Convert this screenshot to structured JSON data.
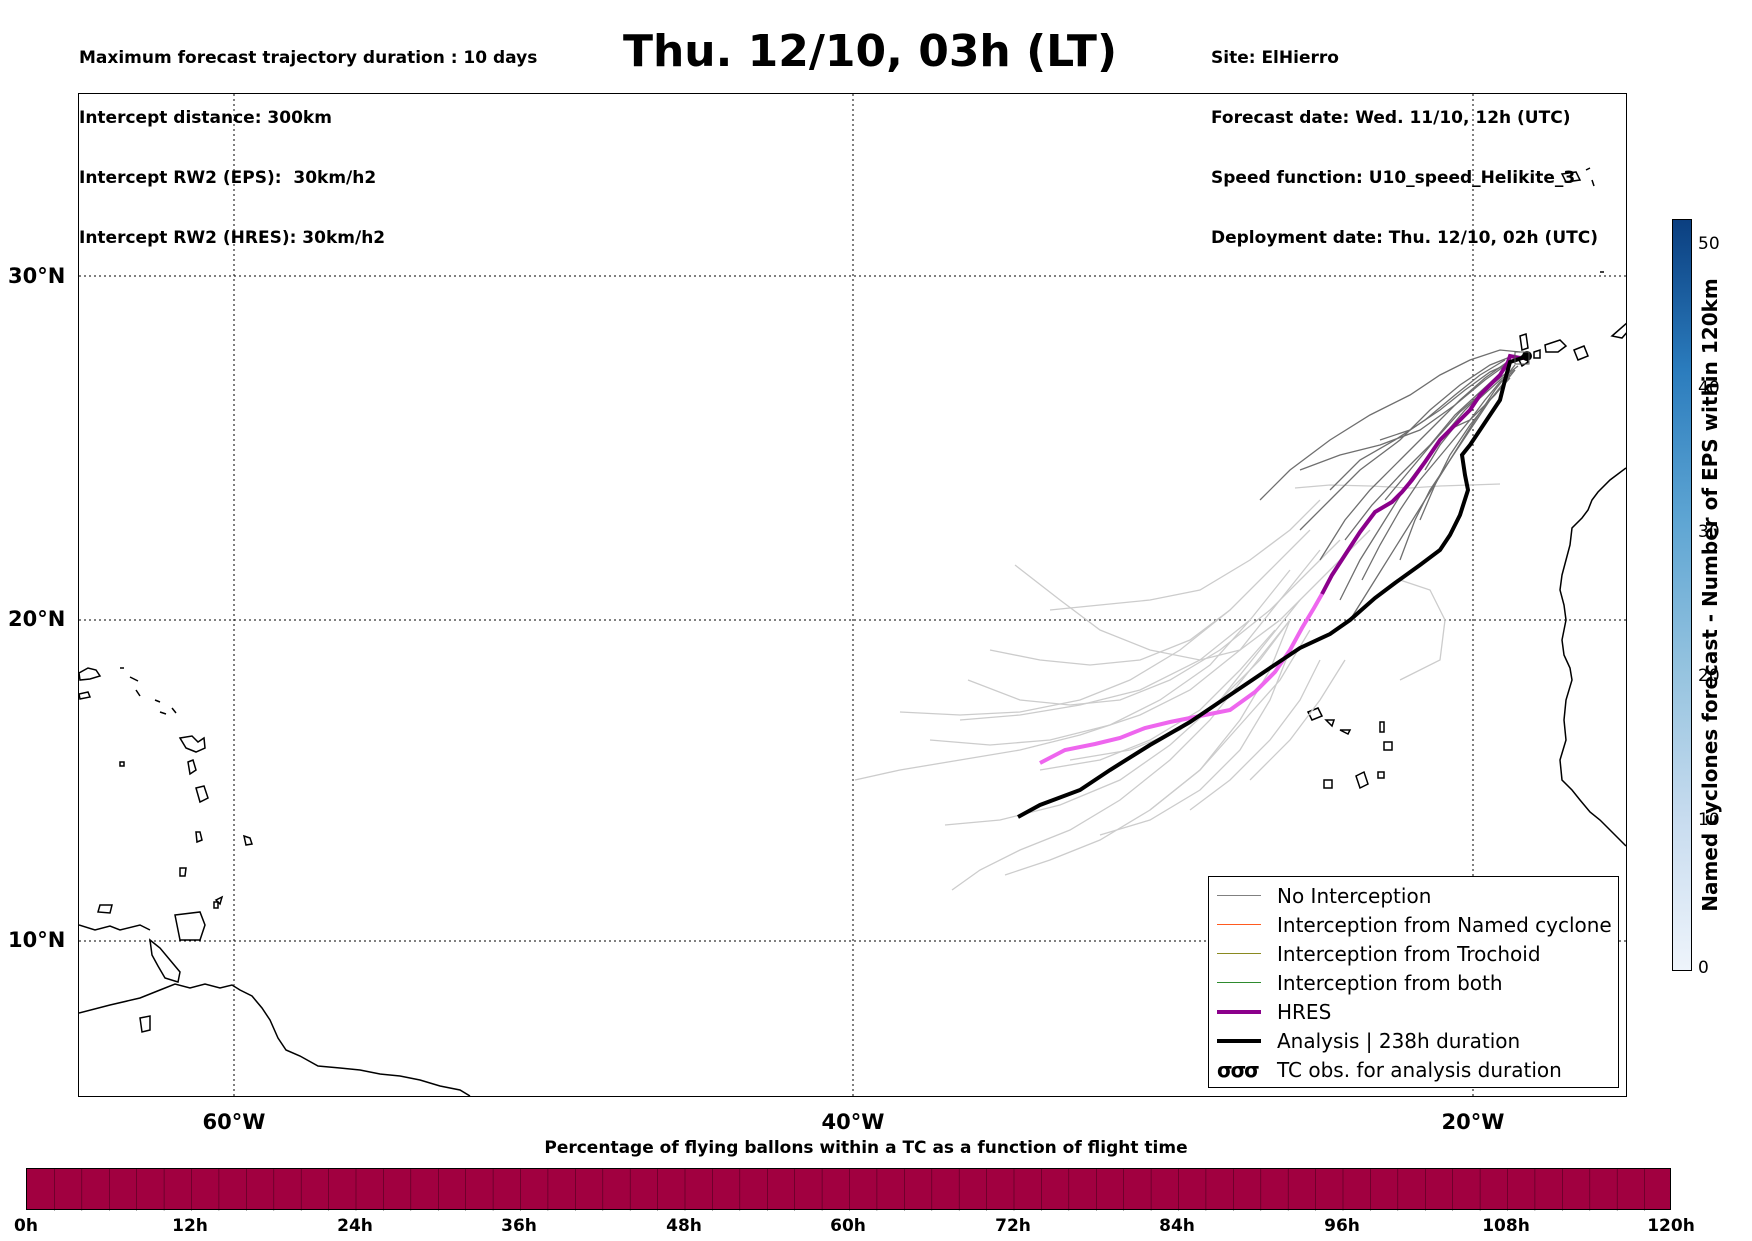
{
  "header": {
    "left_lines": [
      "Maximum forecast trajectory duration : 10 days",
      "Intercept distance: 300km",
      "Intercept RW2 (EPS):  30km/h2",
      "Intercept RW2 (HRES): 30km/h2"
    ],
    "title": "Thu. 12/10, 03h (LT)",
    "right_lines": [
      "Site: ElHierro",
      "Forecast date: Wed. 11/10, 12h (UTC)",
      "Speed function: U10_speed_Helikite_3",
      "Deployment date: Thu. 12/10, 02h (UTC)"
    ]
  },
  "map": {
    "lat_labels": [
      "30°N",
      "20°N",
      "10°N"
    ],
    "lon_labels": [
      "60°W",
      "40°W",
      "20°W"
    ],
    "colors": {
      "eps_near": "#6f6f6f",
      "eps_far": "#cccccc",
      "hres": "#8b008b",
      "hres_late": "#ee66ee",
      "analysis": "#000000",
      "coast": "#000000"
    }
  },
  "legend": {
    "items": [
      {
        "label": "No Interception",
        "color": "#808080",
        "width": 1.5
      },
      {
        "label": "Interception from Named cyclone",
        "color": "#ff5a1f",
        "width": 1.5
      },
      {
        "label": "Interception from Trochoid",
        "color": "#8a8a20",
        "width": 1.5
      },
      {
        "label": "Interception from both",
        "color": "#2e8b2e",
        "width": 1.5
      },
      {
        "label": "HRES",
        "color": "#8b008b",
        "width": 4
      },
      {
        "label": "Analysis | 238h duration",
        "color": "#000000",
        "width": 4
      }
    ],
    "tc_symbol": "σσσ",
    "tc_label": "TC obs. for analysis duration"
  },
  "colorbar_right": {
    "label": "Named cyclones forecast - Number of EPS within 120km",
    "ticks": [
      "50",
      "40",
      "30",
      "20",
      "10",
      "0"
    ]
  },
  "colorbar_bottom": {
    "title": "Percentage of flying ballons within a TC as a function of flight time",
    "ticks": [
      "0h",
      "12h",
      "24h",
      "36h",
      "48h",
      "60h",
      "72h",
      "84h",
      "96h",
      "108h",
      "120h"
    ],
    "fill_color": "#a10040"
  }
}
